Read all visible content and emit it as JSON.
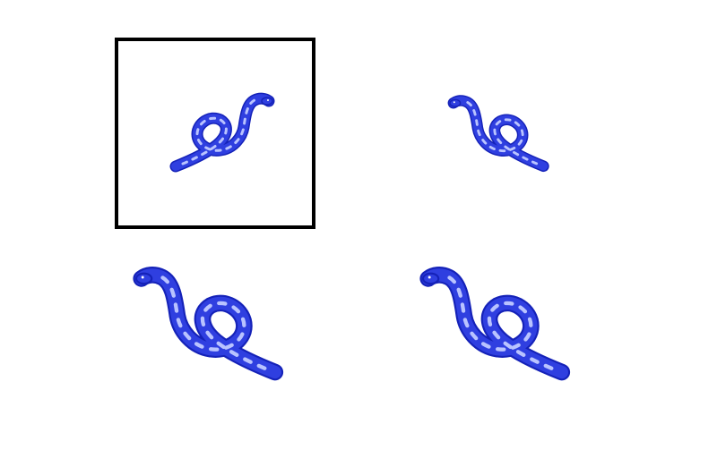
{
  "options": [
    {
      "id": "option-1",
      "selected": true,
      "orientation": "mirrored",
      "icon": "blue-snake-icon"
    },
    {
      "id": "option-2",
      "selected": false,
      "orientation": "original",
      "icon": "blue-snake-icon"
    },
    {
      "id": "option-3",
      "selected": false,
      "orientation": "original",
      "icon": "blue-snake-icon"
    },
    {
      "id": "option-4",
      "selected": false,
      "orientation": "original",
      "icon": "blue-snake-icon"
    }
  ],
  "colors": {
    "snake_fill": "#2f3fe0",
    "snake_pattern": "#b9c3ff",
    "snake_outline": "#1522b8",
    "selection_border": "#000000",
    "background": "#ffffff"
  }
}
